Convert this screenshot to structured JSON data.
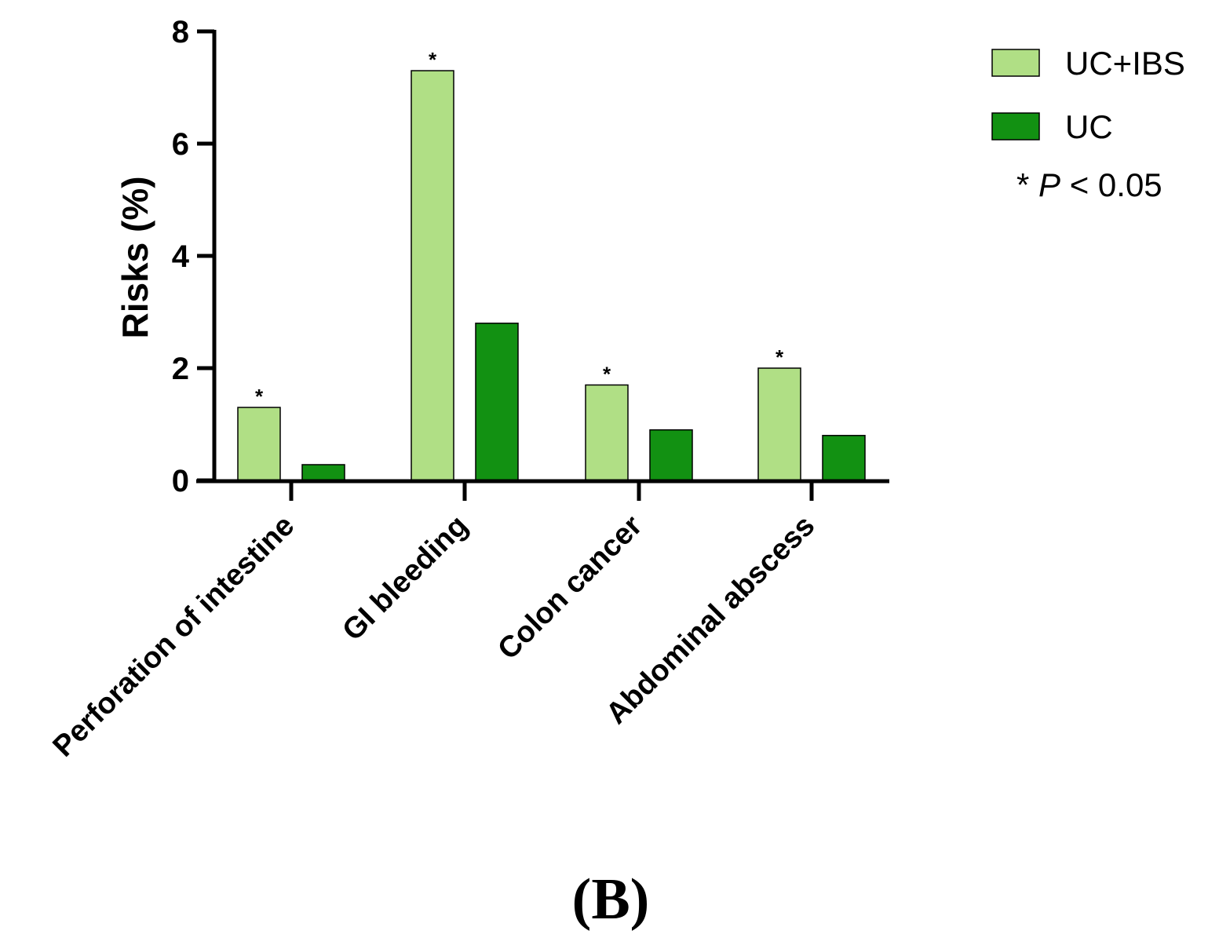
{
  "chart_data": {
    "type": "bar",
    "categories": [
      "Perforation of intestine",
      "GI bleeding",
      "Colon cancer",
      "Abdominal abscess"
    ],
    "series": [
      {
        "name": "UC+IBS",
        "color": "#b0df85",
        "values": [
          1.3,
          7.3,
          1.7,
          2.0
        ],
        "significant": [
          true,
          true,
          true,
          true
        ]
      },
      {
        "name": "UC",
        "color": "#129112",
        "values": [
          0.28,
          2.8,
          0.9,
          0.8
        ],
        "significant": [
          false,
          false,
          false,
          false
        ]
      }
    ],
    "ylabel": "Risks (%)",
    "xlabel": "",
    "ylim": [
      0,
      8
    ],
    "yticks": [
      "0",
      "2",
      "4",
      "6",
      "8"
    ],
    "significance_marker": "*",
    "significance_note": {
      "marker": "*",
      "stat": "P",
      "text": "< 0.05"
    },
    "legend_position": "top-right",
    "panel_label": "(B)"
  }
}
